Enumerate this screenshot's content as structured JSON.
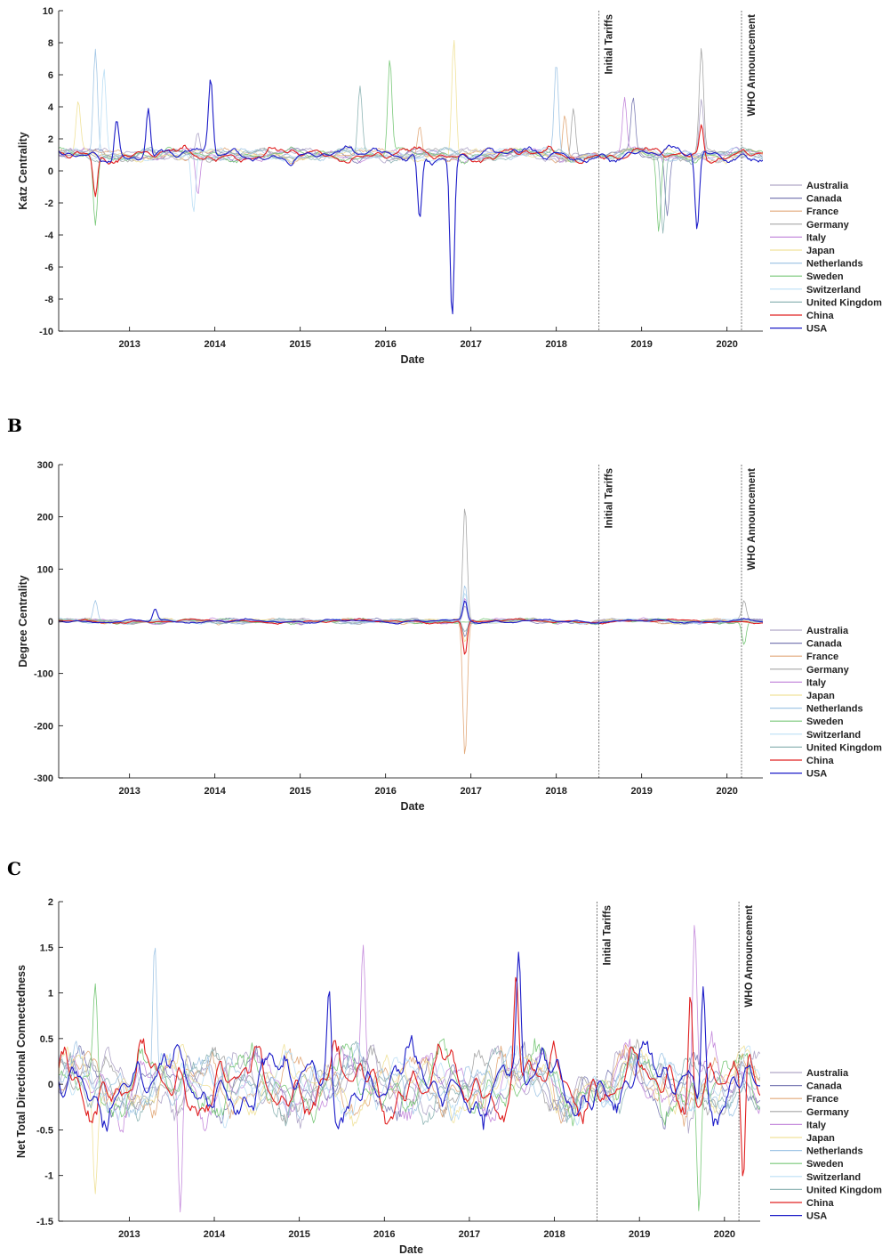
{
  "figure": {
    "panel_labels": [
      "B",
      "C"
    ]
  },
  "chart_data": [
    {
      "type": "line",
      "panel": "A",
      "xlabel": "Date",
      "ylabel": "Katz Centrality",
      "xlim": [
        2012.17,
        2020.42
      ],
      "ylim": [
        -10,
        10
      ],
      "x_ticks": [
        2013,
        2014,
        2015,
        2016,
        2017,
        2018,
        2019,
        2020
      ],
      "y_ticks": [
        -10,
        -8,
        -6,
        -4,
        -2,
        0,
        2,
        4,
        6,
        8,
        10
      ],
      "legend_position": "right",
      "annotations": [
        {
          "label": "Initial Tariffs",
          "x": 2018.5
        },
        {
          "label": "WHO Announcement",
          "x": 2020.17
        }
      ],
      "series": [
        {
          "name": "Australia",
          "color": "#b0a6c8",
          "baseline": 1,
          "amplitude": 0.5,
          "spikes": [
            {
              "x": 2013.8,
              "y": 2.4
            },
            {
              "x": 2019.7,
              "y": 4.5
            }
          ]
        },
        {
          "name": "Canada",
          "color": "#7d7db5",
          "baseline": 1,
          "amplitude": 0.5,
          "spikes": [
            {
              "x": 2018.9,
              "y": 4.6
            },
            {
              "x": 2019.3,
              "y": -2.8
            }
          ]
        },
        {
          "name": "France",
          "color": "#e2a97a",
          "baseline": 1,
          "amplitude": 0.5,
          "spikes": [
            {
              "x": 2016.4,
              "y": 2.8
            },
            {
              "x": 2018.1,
              "y": 3.5
            }
          ]
        },
        {
          "name": "Germany",
          "color": "#a6a6a6",
          "baseline": 1,
          "amplitude": 0.5,
          "spikes": [
            {
              "x": 2019.7,
              "y": 7.7
            },
            {
              "x": 2018.2,
              "y": 3.9
            }
          ]
        },
        {
          "name": "Italy",
          "color": "#c58bdc",
          "baseline": 1,
          "amplitude": 0.5,
          "spikes": [
            {
              "x": 2018.8,
              "y": 4.6
            },
            {
              "x": 2013.8,
              "y": -1.5
            }
          ]
        },
        {
          "name": "Japan",
          "color": "#f0e29a",
          "baseline": 1,
          "amplitude": 0.5,
          "spikes": [
            {
              "x": 2016.8,
              "y": 8.2
            },
            {
              "x": 2012.4,
              "y": 4.4
            }
          ]
        },
        {
          "name": "Netherlands",
          "color": "#a3c7e6",
          "baseline": 1,
          "amplitude": 0.5,
          "spikes": [
            {
              "x": 2012.6,
              "y": 7.6
            },
            {
              "x": 2018.0,
              "y": 6.8
            }
          ]
        },
        {
          "name": "Sweden",
          "color": "#78c878",
          "baseline": 1,
          "amplitude": 0.5,
          "spikes": [
            {
              "x": 2016.05,
              "y": 7.0
            },
            {
              "x": 2012.6,
              "y": -3.4
            },
            {
              "x": 2019.2,
              "y": -3.8
            }
          ]
        },
        {
          "name": "Switzerland",
          "color": "#bcdff5",
          "baseline": 1,
          "amplitude": 0.5,
          "spikes": [
            {
              "x": 2012.7,
              "y": 6.4
            },
            {
              "x": 2013.75,
              "y": -2.6
            }
          ]
        },
        {
          "name": "United Kingdom",
          "color": "#8fb5b5",
          "baseline": 1,
          "amplitude": 0.5,
          "spikes": [
            {
              "x": 2015.7,
              "y": 5.3
            },
            {
              "x": 2019.25,
              "y": -3.9
            }
          ]
        },
        {
          "name": "China",
          "color": "#e02020",
          "baseline": 1,
          "amplitude": 0.6,
          "spikes": [
            {
              "x": 2019.7,
              "y": 2.9
            },
            {
              "x": 2012.6,
              "y": -1.6
            }
          ]
        },
        {
          "name": "USA",
          "color": "#1c1cc8",
          "baseline": 1,
          "amplitude": 0.6,
          "spikes": [
            {
              "x": 2016.78,
              "y": -9.2
            },
            {
              "x": 2013.95,
              "y": 5.8
            },
            {
              "x": 2013.22,
              "y": 3.9
            },
            {
              "x": 2019.65,
              "y": -3.7
            },
            {
              "x": 2012.85,
              "y": 3.2
            },
            {
              "x": 2016.4,
              "y": -3.0
            }
          ]
        }
      ]
    },
    {
      "type": "line",
      "panel": "B",
      "xlabel": "Date",
      "ylabel": "Degree Centrality",
      "xlim": [
        2012.17,
        2020.42
      ],
      "ylim": [
        -300,
        300
      ],
      "x_ticks": [
        2013,
        2014,
        2015,
        2016,
        2017,
        2018,
        2019,
        2020
      ],
      "y_ticks": [
        -300,
        -200,
        -100,
        0,
        100,
        200,
        300
      ],
      "legend_position": "right",
      "annotations": [
        {
          "label": "Initial Tariffs",
          "x": 2018.5
        },
        {
          "label": "WHO Announcement",
          "x": 2020.17
        }
      ],
      "series": [
        {
          "name": "Australia",
          "color": "#b0a6c8",
          "baseline": 0,
          "amplitude": 6,
          "spikes": [
            {
              "x": 2016.93,
              "y": 30
            }
          ]
        },
        {
          "name": "Canada",
          "color": "#7d7db5",
          "baseline": 0,
          "amplitude": 6,
          "spikes": [
            {
              "x": 2016.93,
              "y": -30
            }
          ]
        },
        {
          "name": "France",
          "color": "#e2a97a",
          "baseline": 0,
          "amplitude": 6,
          "spikes": [
            {
              "x": 2016.93,
              "y": -262
            }
          ]
        },
        {
          "name": "Germany",
          "color": "#a6a6a6",
          "baseline": 0,
          "amplitude": 6,
          "spikes": [
            {
              "x": 2016.93,
              "y": 222
            },
            {
              "x": 2020.2,
              "y": 40
            }
          ]
        },
        {
          "name": "Italy",
          "color": "#c58bdc",
          "baseline": 0,
          "amplitude": 6,
          "spikes": [
            {
              "x": 2016.93,
              "y": 45
            }
          ]
        },
        {
          "name": "Japan",
          "color": "#f0e29a",
          "baseline": 0,
          "amplitude": 6,
          "spikes": [
            {
              "x": 2016.93,
              "y": -40
            }
          ]
        },
        {
          "name": "Netherlands",
          "color": "#a3c7e6",
          "baseline": 0,
          "amplitude": 6,
          "spikes": [
            {
              "x": 2016.93,
              "y": 70
            },
            {
              "x": 2012.6,
              "y": 40
            }
          ]
        },
        {
          "name": "Sweden",
          "color": "#78c878",
          "baseline": 0,
          "amplitude": 6,
          "spikes": [
            {
              "x": 2020.2,
              "y": -45
            }
          ]
        },
        {
          "name": "Switzerland",
          "color": "#bcdff5",
          "baseline": 0,
          "amplitude": 6,
          "spikes": [
            {
              "x": 2016.93,
              "y": 55
            }
          ]
        },
        {
          "name": "United Kingdom",
          "color": "#8fb5b5",
          "baseline": 0,
          "amplitude": 6,
          "spikes": [
            {
              "x": 2016.93,
              "y": -20
            }
          ]
        },
        {
          "name": "China",
          "color": "#e02020",
          "baseline": 0,
          "amplitude": 5,
          "spikes": [
            {
              "x": 2016.93,
              "y": -65
            }
          ]
        },
        {
          "name": "USA",
          "color": "#1c1cc8",
          "baseline": 0,
          "amplitude": 5,
          "spikes": [
            {
              "x": 2016.93,
              "y": 40
            },
            {
              "x": 2013.3,
              "y": 24
            }
          ]
        }
      ]
    },
    {
      "type": "line",
      "panel": "C",
      "xlabel": "Date",
      "ylabel": "Net Total Directional Connectedness",
      "xlim": [
        2012.17,
        2020.42
      ],
      "ylim": [
        -1.5,
        2
      ],
      "x_ticks": [
        2013,
        2014,
        2015,
        2016,
        2017,
        2018,
        2019,
        2020
      ],
      "y_ticks": [
        -1.5,
        -1,
        -0.5,
        0,
        0.5,
        1,
        1.5,
        2
      ],
      "legend_position": "right",
      "annotations": [
        {
          "label": "Initial Tariffs",
          "x": 2018.5
        },
        {
          "label": "WHO Announcement",
          "x": 2020.17
        }
      ],
      "series": [
        {
          "name": "Australia",
          "color": "#b0a6c8",
          "baseline": 0,
          "amplitude": 0.45,
          "spikes": []
        },
        {
          "name": "Canada",
          "color": "#7d7db5",
          "baseline": 0,
          "amplitude": 0.45,
          "spikes": []
        },
        {
          "name": "France",
          "color": "#e2a97a",
          "baseline": 0,
          "amplitude": 0.45,
          "spikes": []
        },
        {
          "name": "Germany",
          "color": "#a6a6a6",
          "baseline": 0,
          "amplitude": 0.45,
          "spikes": []
        },
        {
          "name": "Italy",
          "color": "#c58bdc",
          "baseline": 0,
          "amplitude": 0.5,
          "spikes": [
            {
              "x": 2015.75,
              "y": 1.53
            },
            {
              "x": 2019.65,
              "y": 1.78
            },
            {
              "x": 2013.6,
              "y": -1.4
            }
          ]
        },
        {
          "name": "Japan",
          "color": "#f0e29a",
          "baseline": 0,
          "amplitude": 0.45,
          "spikes": [
            {
              "x": 2012.6,
              "y": -1.2
            }
          ]
        },
        {
          "name": "Netherlands",
          "color": "#a3c7e6",
          "baseline": 0,
          "amplitude": 0.45,
          "spikes": [
            {
              "x": 2013.3,
              "y": 1.55
            }
          ]
        },
        {
          "name": "Sweden",
          "color": "#78c878",
          "baseline": 0,
          "amplitude": 0.5,
          "spikes": [
            {
              "x": 2019.7,
              "y": -1.4
            },
            {
              "x": 2012.6,
              "y": 1.1
            }
          ]
        },
        {
          "name": "Switzerland",
          "color": "#bcdff5",
          "baseline": 0,
          "amplitude": 0.45,
          "spikes": []
        },
        {
          "name": "United Kingdom",
          "color": "#8fb5b5",
          "baseline": 0,
          "amplitude": 0.45,
          "spikes": []
        },
        {
          "name": "China",
          "color": "#e02020",
          "baseline": 0,
          "amplitude": 0.5,
          "spikes": [
            {
              "x": 2017.55,
              "y": 1.2
            },
            {
              "x": 2020.22,
              "y": -1.05
            },
            {
              "x": 2019.6,
              "y": 1.0
            }
          ]
        },
        {
          "name": "USA",
          "color": "#1c1cc8",
          "baseline": 0,
          "amplitude": 0.5,
          "spikes": [
            {
              "x": 2017.58,
              "y": 1.45
            },
            {
              "x": 2015.35,
              "y": 1.05
            },
            {
              "x": 2019.75,
              "y": 1.07
            }
          ]
        }
      ]
    }
  ]
}
